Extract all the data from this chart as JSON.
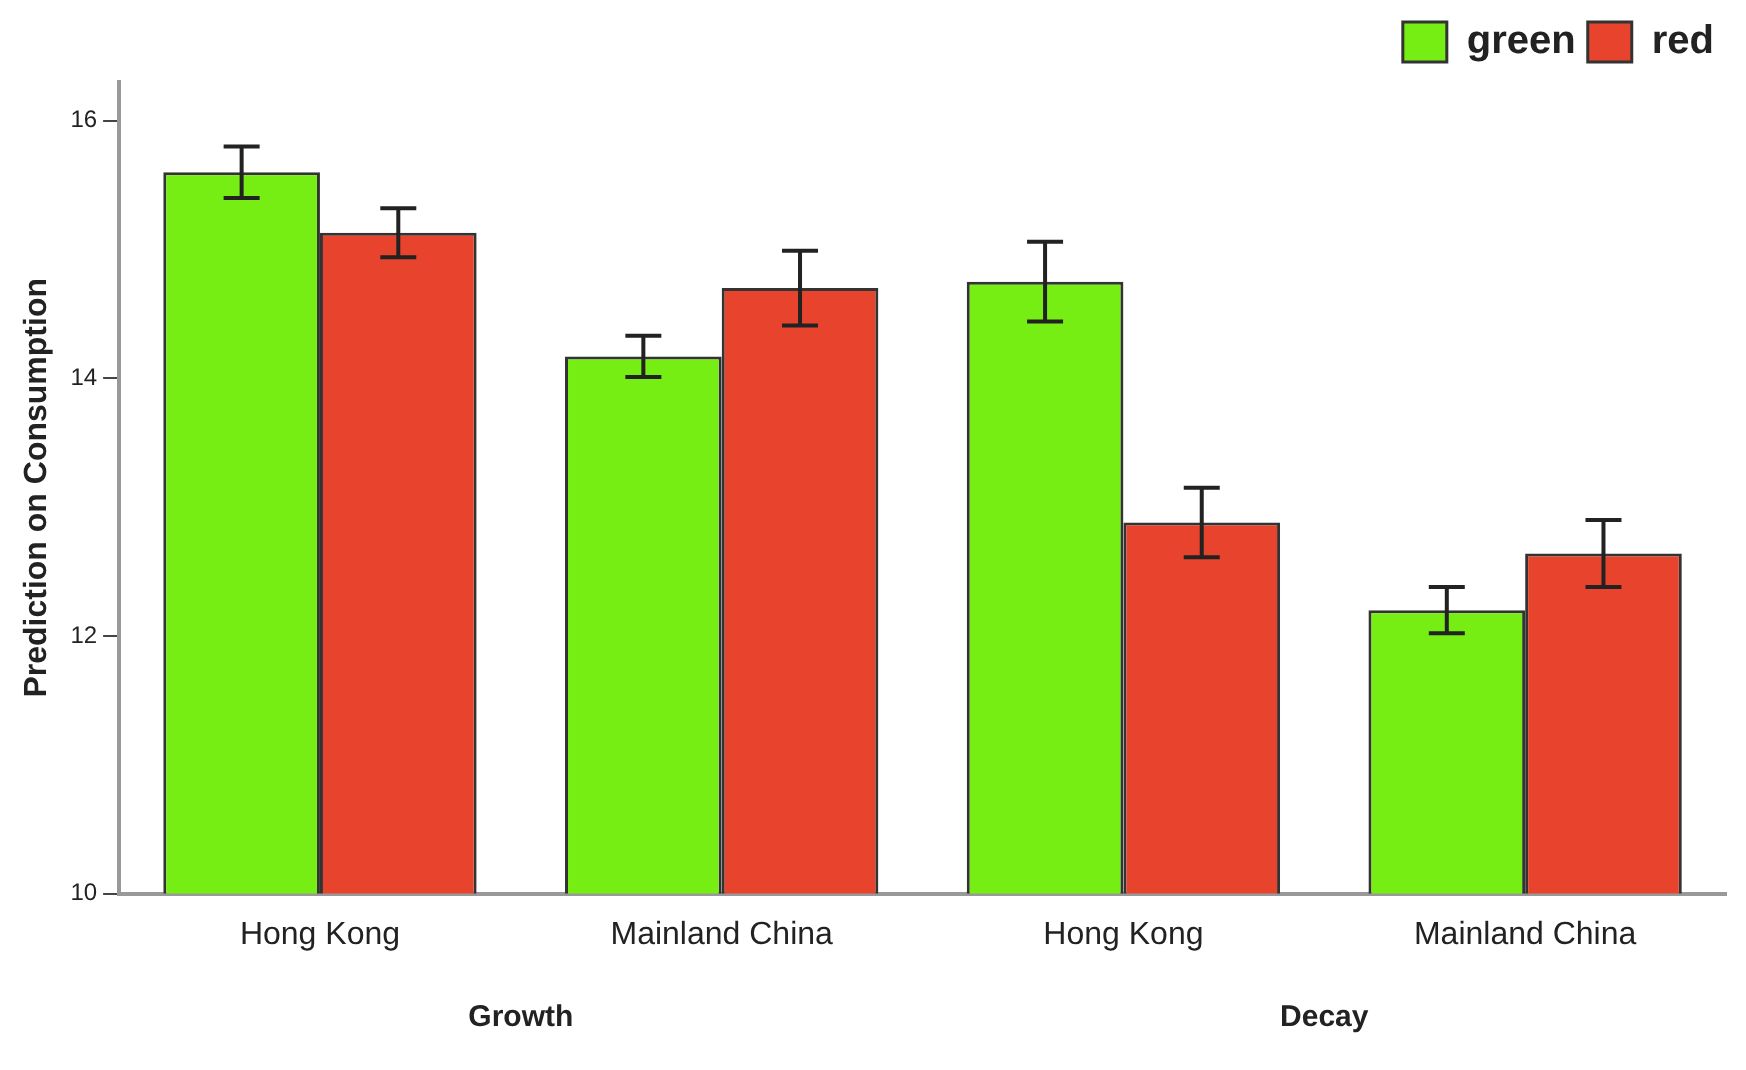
{
  "chart_data": {
    "type": "bar",
    "ylabel": "Prediction on Consumption",
    "categories": [
      "Hong Kong",
      "Mainland China",
      "Hong Kong",
      "Mainland China"
    ],
    "series": [
      {
        "name": "green",
        "color": "#76ee14",
        "values": [
          15.6,
          14.17,
          14.75,
          12.2
        ],
        "errors": [
          0.2,
          0.16,
          0.31,
          0.18
        ]
      },
      {
        "name": "red",
        "color": "#e8432d",
        "values": [
          15.13,
          14.7,
          12.88,
          12.64
        ],
        "errors": [
          0.19,
          0.29,
          0.27,
          0.26
        ]
      }
    ],
    "ylim": [
      10,
      16.3
    ],
    "yticks": [
      10,
      12,
      14,
      16
    ],
    "grid": false,
    "legend": "top right",
    "annotations": [
      "Growth",
      "Decay"
    ]
  }
}
